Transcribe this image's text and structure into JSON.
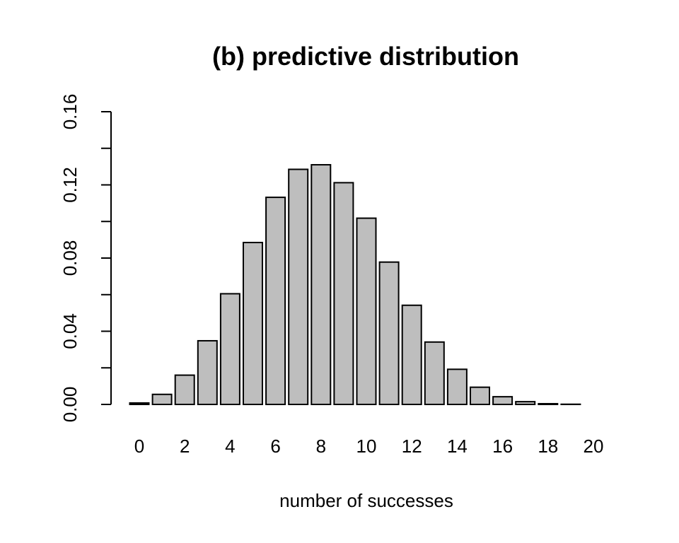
{
  "chart_data": {
    "type": "bar",
    "title": "(b) predictive distribution",
    "xlabel": "number of successes",
    "ylabel": "",
    "categories": [
      "0",
      "1",
      "2",
      "3",
      "4",
      "5",
      "6",
      "7",
      "8",
      "9",
      "10",
      "11",
      "12",
      "13",
      "14",
      "15",
      "16",
      "17",
      "18",
      "19",
      "20"
    ],
    "values": [
      0.0008,
      0.0055,
      0.016,
      0.0348,
      0.0605,
      0.0885,
      0.1132,
      0.1285,
      0.131,
      0.1212,
      0.1018,
      0.0778,
      0.0542,
      0.0341,
      0.0192,
      0.0094,
      0.0042,
      0.0015,
      0.0004,
      0.0001,
      0.0
    ],
    "ylim": [
      0,
      0.16
    ],
    "yticks": [
      0.0,
      0.02,
      0.04,
      0.06,
      0.08,
      0.1,
      0.12,
      0.14,
      0.16
    ],
    "ytick_labels": [
      "0.00",
      "0.04",
      "0.08",
      "0.12",
      "0.16"
    ],
    "xtick_labels": [
      "0",
      "2",
      "4",
      "6",
      "8",
      "10",
      "12",
      "14",
      "16",
      "18",
      "20"
    ],
    "bar_color": "#bebebe",
    "grid": false,
    "legend": "none"
  }
}
